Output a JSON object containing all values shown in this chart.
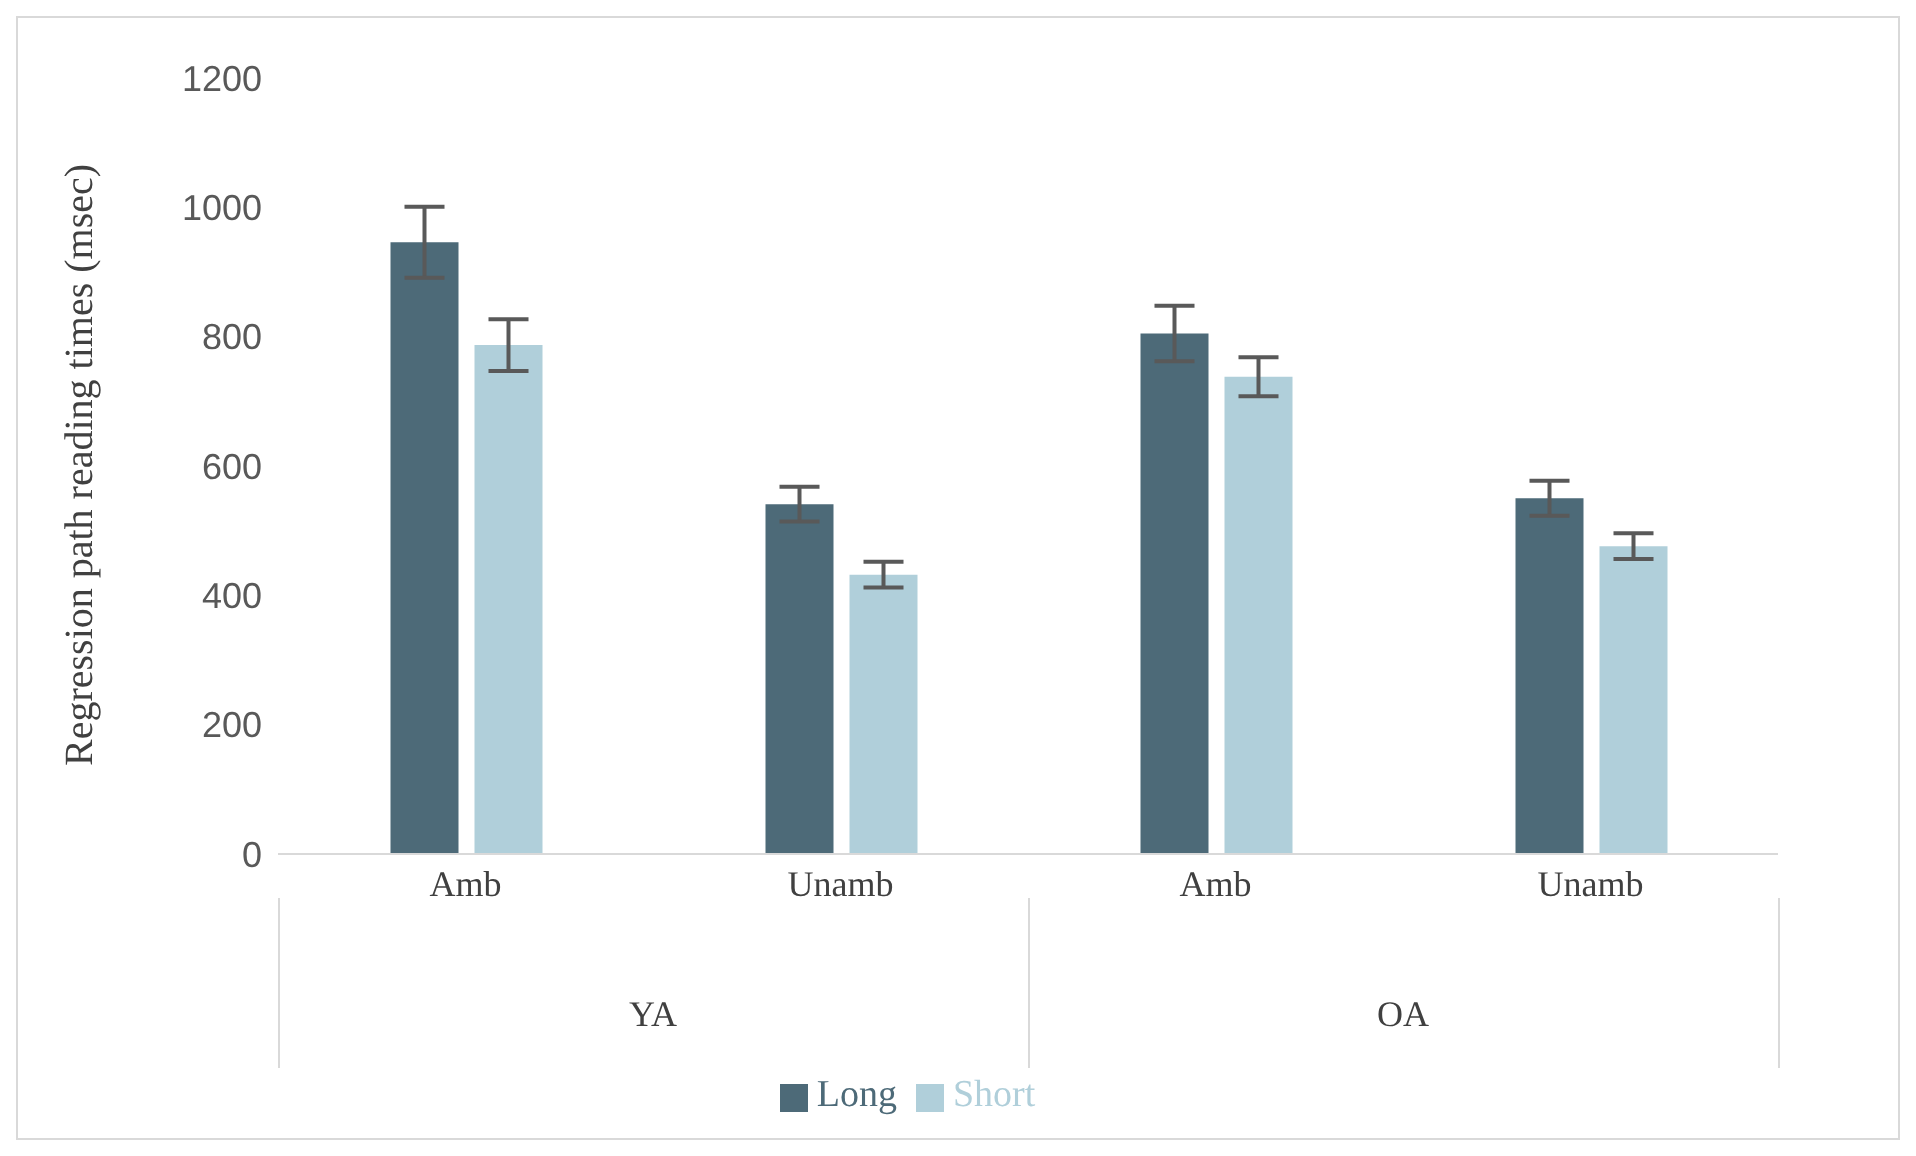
{
  "chart_data": {
    "type": "bar",
    "ylabel": "Regression path reading times (msec)",
    "categories": [
      "Amb",
      "Unamb",
      "Amb",
      "Unamb"
    ],
    "annotations": [
      "YA",
      "OA"
    ],
    "series": [
      {
        "name": "Long",
        "color": "#4d6a78",
        "values": [
          946,
          541,
          805,
          550
        ],
        "errors": [
          55,
          27,
          43,
          27
        ]
      },
      {
        "name": "Short",
        "color": "#b0cfda",
        "values": [
          787,
          432,
          738,
          476
        ],
        "errors": [
          40,
          20,
          30,
          20
        ]
      }
    ],
    "ylim": [
      0,
      1200
    ],
    "yticks": [
      0,
      200,
      400,
      600,
      800,
      1000,
      1200
    ],
    "grid": false,
    "legend": "bottom"
  }
}
